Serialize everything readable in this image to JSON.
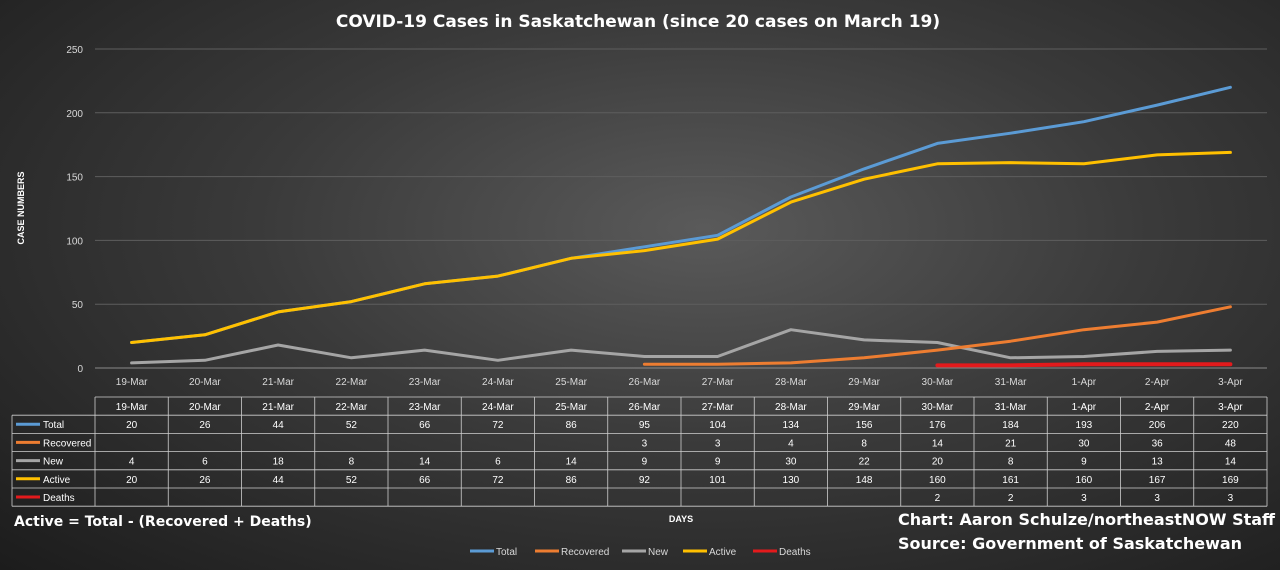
{
  "chart_data": {
    "type": "line",
    "title": "COVID-19 Cases in Saskatchewan (since 20 cases on March 19)",
    "ylabel": "CASE NUMBERS",
    "xlabel": "DAYS",
    "ylim": [
      0,
      250
    ],
    "yticks": [
      0,
      50,
      100,
      150,
      200,
      250
    ],
    "grid": true,
    "legend_position": "bottom",
    "categories": [
      "19-Mar",
      "20-Mar",
      "21-Mar",
      "22-Mar",
      "23-Mar",
      "24-Mar",
      "25-Mar",
      "26-Mar",
      "27-Mar",
      "28-Mar",
      "29-Mar",
      "30-Mar",
      "31-Mar",
      "1-Apr",
      "2-Apr",
      "3-Apr"
    ],
    "series": [
      {
        "name": "Total",
        "color": "#5b9bd5",
        "values": [
          20,
          26,
          44,
          52,
          66,
          72,
          86,
          95,
          104,
          134,
          156,
          176,
          184,
          193,
          206,
          220
        ]
      },
      {
        "name": "Recovered",
        "color": "#ed7d31",
        "values": [
          null,
          null,
          null,
          null,
          null,
          null,
          null,
          3,
          3,
          4,
          8,
          14,
          21,
          30,
          36,
          48
        ]
      },
      {
        "name": "New",
        "color": "#a5a5a5",
        "values": [
          4,
          6,
          18,
          8,
          14,
          6,
          14,
          9,
          9,
          30,
          22,
          20,
          8,
          9,
          13,
          14
        ]
      },
      {
        "name": "Active",
        "color": "#ffc000",
        "values": [
          20,
          26,
          44,
          52,
          66,
          72,
          86,
          92,
          101,
          130,
          148,
          160,
          161,
          160,
          167,
          169
        ]
      },
      {
        "name": "Deaths",
        "color": "#e31a1c",
        "values": [
          null,
          null,
          null,
          null,
          null,
          null,
          null,
          null,
          null,
          null,
          null,
          2,
          2,
          3,
          3,
          3
        ]
      }
    ]
  },
  "notes": {
    "formula": "Active = Total - (Recovered + Deaths)",
    "credit": "Chart: Aaron Schulze/northeastNOW Staff",
    "source": "Source: Government of Saskatchewan"
  }
}
